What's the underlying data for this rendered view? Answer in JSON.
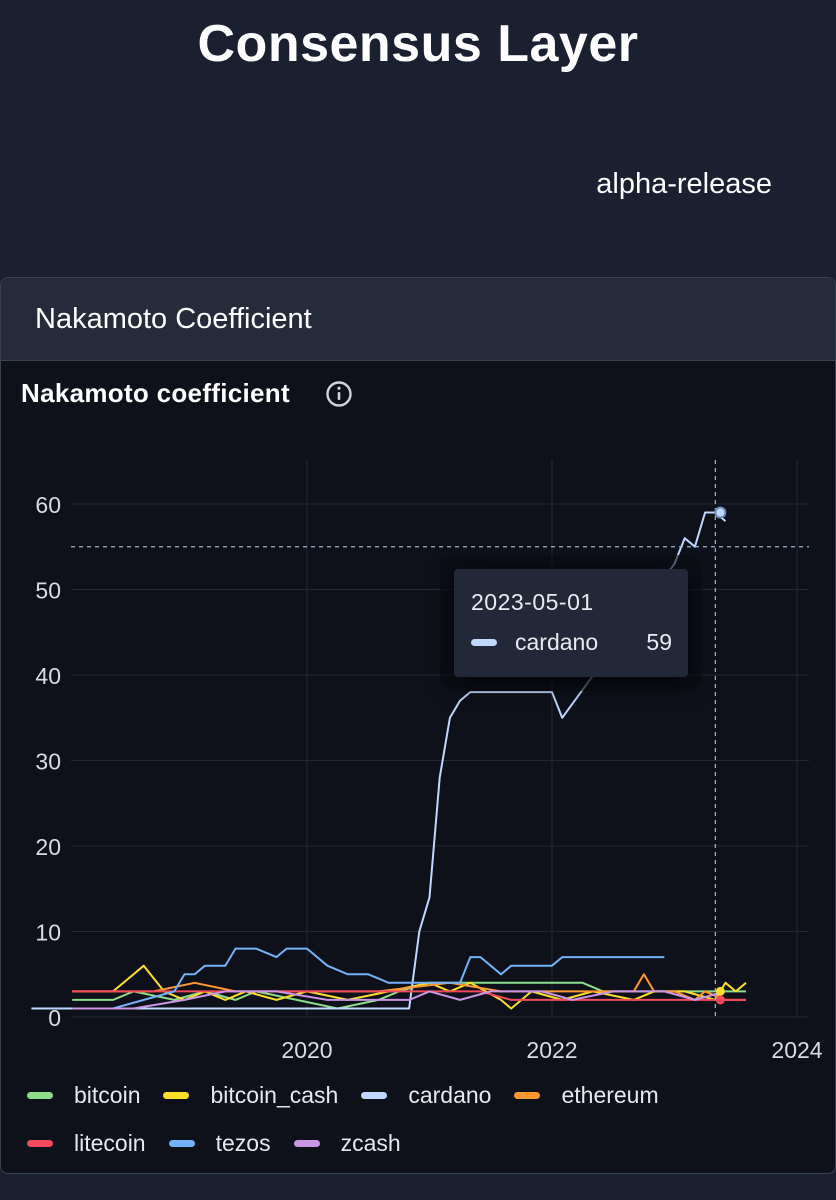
{
  "header": {
    "title": "Consensus Layer",
    "release": "alpha-release"
  },
  "panel": {
    "title": "Nakamoto Coefficient"
  },
  "chart_data": {
    "type": "line",
    "title": "Nakamoto coefficient",
    "xlabel": "",
    "ylabel": "",
    "ylim": [
      0,
      65
    ],
    "y_ticks": [
      0,
      10,
      20,
      30,
      40,
      50,
      60
    ],
    "x_ticks": [
      "2020",
      "2022",
      "2024"
    ],
    "grid": true,
    "legend_position": "bottom",
    "crosshair": {
      "x": "2023-05-01",
      "y": 55
    },
    "tooltip": {
      "date": "2023-05-01",
      "series": "cardano",
      "value": "59"
    },
    "series": [
      {
        "name": "bitcoin",
        "color": "#8ddc8a",
        "x": [
          "2018-02-01",
          "2018-06-01",
          "2018-08-01",
          "2018-12-01",
          "2019-03-01",
          "2019-06-01",
          "2019-08-01",
          "2019-12-01",
          "2020-04-01",
          "2020-08-01",
          "2020-10-01",
          "2021-01-01",
          "2021-06-01",
          "2021-12-01",
          "2022-04-01",
          "2022-06-01",
          "2023-01-01",
          "2023-05-01",
          "2023-08-01"
        ],
        "values": [
          2,
          2,
          3,
          2,
          3,
          2,
          3,
          2,
          1,
          2,
          3,
          4,
          4,
          4,
          4,
          3,
          3,
          3,
          3
        ]
      },
      {
        "name": "bitcoin_cash",
        "color": "#fade2a",
        "x": [
          "2018-02-01",
          "2018-06-01",
          "2018-08-01",
          "2018-09-01",
          "2018-11-01",
          "2019-01-01",
          "2019-03-01",
          "2019-05-01",
          "2019-07-01",
          "2019-10-01",
          "2020-01-01",
          "2020-05-01",
          "2020-09-01",
          "2021-01-01",
          "2021-03-01",
          "2021-05-01",
          "2021-08-01",
          "2021-09-01",
          "2021-11-01",
          "2022-02-01",
          "2022-05-01",
          "2022-09-01",
          "2022-11-01",
          "2023-02-01",
          "2023-05-01",
          "2023-06-01",
          "2023-07-01",
          "2023-08-01"
        ],
        "values": [
          3,
          3,
          5,
          6,
          3,
          2,
          3,
          2,
          3,
          2,
          3,
          2,
          3,
          4,
          3,
          4,
          2,
          1,
          3,
          2,
          3,
          2,
          3,
          3,
          2,
          4,
          3,
          4
        ]
      },
      {
        "name": "cardano",
        "color": "#c0d8ff",
        "x": [
          "2017-10-01",
          "2018-03-01",
          "2020-11-01",
          "2020-12-01",
          "2021-01-01",
          "2021-02-01",
          "2021-03-01",
          "2021-04-01",
          "2021-05-01",
          "2021-06-01",
          "2022-01-01",
          "2022-02-01",
          "2023-01-01",
          "2023-02-01",
          "2023-03-01",
          "2023-04-01",
          "2023-05-01",
          "2023-06-01"
        ],
        "values": [
          1,
          1,
          1,
          10,
          14,
          28,
          35,
          37,
          38,
          38,
          38,
          35,
          53,
          56,
          55,
          59,
          59,
          58
        ]
      },
      {
        "name": "ethereum",
        "color": "#ff9830",
        "x": [
          "2018-02-01",
          "2018-10-01",
          "2019-02-01",
          "2019-06-01",
          "2020-02-01",
          "2020-08-01",
          "2021-03-01",
          "2021-08-01",
          "2022-03-01",
          "2022-09-01",
          "2022-10-01",
          "2022-11-01",
          "2023-01-01",
          "2023-03-01",
          "2023-04-01",
          "2023-06-01",
          "2023-08-01"
        ],
        "values": [
          3,
          3,
          4,
          3,
          3,
          3,
          4,
          3,
          3,
          3,
          5,
          3,
          3,
          2,
          3,
          2,
          2
        ]
      },
      {
        "name": "litecoin",
        "color": "#f2495c",
        "x": [
          "2018-02-01",
          "2019-01-01",
          "2020-01-01",
          "2021-01-01",
          "2021-06-01",
          "2021-09-01",
          "2022-01-01",
          "2022-06-01",
          "2023-01-01",
          "2023-05-01",
          "2023-08-01"
        ],
        "values": [
          3,
          3,
          3,
          3,
          3,
          2,
          2,
          2,
          2,
          2,
          2
        ]
      },
      {
        "name": "tezos",
        "color": "#73b2f7",
        "x": [
          "2018-06-01",
          "2018-12-01",
          "2019-01-01",
          "2019-02-01",
          "2019-03-01",
          "2019-05-01",
          "2019-06-01",
          "2019-08-01",
          "2019-10-01",
          "2019-11-01",
          "2020-01-01",
          "2020-03-01",
          "2020-05-01",
          "2020-07-01",
          "2020-09-01",
          "2020-12-01",
          "2021-02-01",
          "2021-04-01",
          "2021-05-01",
          "2021-06-01",
          "2021-08-01",
          "2021-09-01",
          "2021-10-01",
          "2021-12-01",
          "2022-01-01",
          "2022-02-01",
          "2022-04-01",
          "2022-12-01"
        ],
        "values": [
          1,
          3,
          5,
          5,
          6,
          6,
          8,
          8,
          7,
          8,
          8,
          6,
          5,
          5,
          4,
          4,
          4,
          4,
          7,
          7,
          5,
          6,
          6,
          6,
          6,
          7,
          7,
          7
        ]
      },
      {
        "name": "zcash",
        "color": "#ca95e5",
        "x": [
          "2018-02-01",
          "2018-08-01",
          "2019-01-01",
          "2019-05-01",
          "2019-10-01",
          "2020-03-01",
          "2020-07-01",
          "2020-11-01",
          "2021-01-01",
          "2021-04-01",
          "2021-07-01",
          "2021-12-01",
          "2022-03-01",
          "2022-07-01",
          "2022-12-01",
          "2023-03-01",
          "2023-06-01"
        ],
        "values": [
          1,
          1,
          2,
          3,
          3,
          2,
          2,
          2,
          3,
          2,
          3,
          3,
          2,
          3,
          3,
          2,
          3
        ]
      }
    ]
  }
}
